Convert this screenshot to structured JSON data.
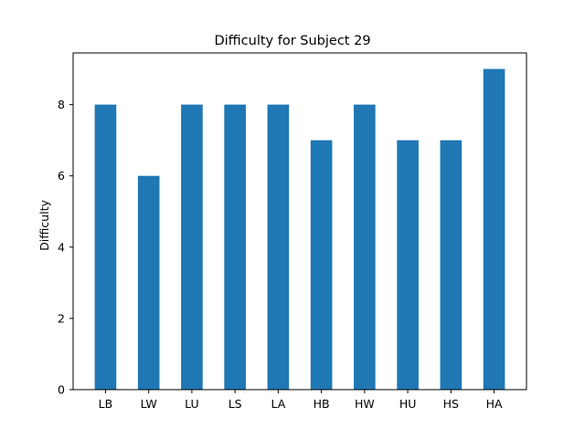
{
  "chart_data": {
    "type": "bar",
    "title": "Difficulty for Subject 29",
    "xlabel": "",
    "ylabel": "Difficulty",
    "categories": [
      "LB",
      "LW",
      "LU",
      "LS",
      "LA",
      "HB",
      "HW",
      "HU",
      "HS",
      "HA"
    ],
    "values": [
      8,
      6,
      8,
      8,
      8,
      7,
      8,
      7,
      7,
      9
    ],
    "ylim": [
      0,
      9.45
    ],
    "yticks": [
      0,
      2,
      4,
      6,
      8
    ],
    "grid": false,
    "legend": "none",
    "bar_color": "#1f77b4"
  }
}
